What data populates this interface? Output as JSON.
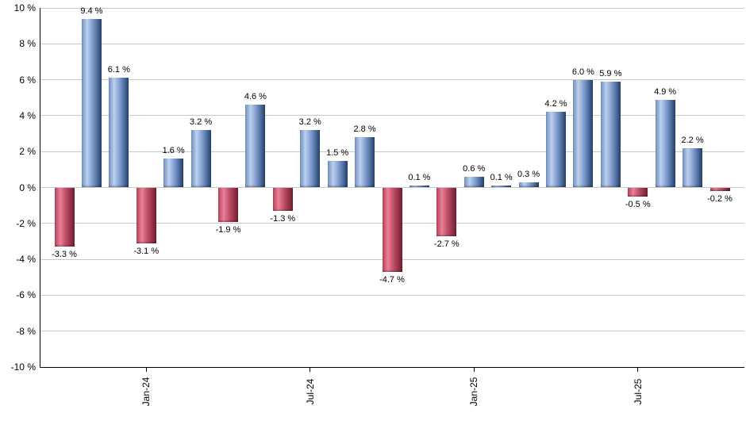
{
  "chart_data": {
    "type": "bar",
    "title": "",
    "xlabel": "",
    "ylabel": "",
    "ylim": [
      -10,
      10
    ],
    "grid": true,
    "legend": null,
    "values": [
      -3.3,
      9.4,
      6.1,
      -3.1,
      1.6,
      3.2,
      -1.9,
      4.6,
      -1.3,
      3.2,
      1.5,
      2.8,
      -4.7,
      0.1,
      -2.7,
      0.6,
      0.1,
      0.3,
      4.2,
      6.0,
      5.9,
      -0.5,
      4.9,
      2.2,
      -0.2
    ],
    "bar_labels": [
      "-3.3 %",
      "9.4 %",
      "6.1 %",
      "-3.1 %",
      "1.6 %",
      "3.2 %",
      "-1.9 %",
      "4.6 %",
      "-1.3 %",
      "3.2 %",
      "1.5 %",
      "2.8 %",
      "-4.7 %",
      "0.1 %",
      "-2.7 %",
      "0.6 %",
      "0.1 %",
      "0.3 %",
      "4.2 %",
      "6.0 %",
      "5.9 %",
      "-0.5 %",
      "4.9 %",
      "2.2 %",
      "-0.2 %"
    ],
    "yticks": [
      {
        "value": 10,
        "label": "10 %"
      },
      {
        "value": 8,
        "label": "8 %"
      },
      {
        "value": 6,
        "label": "6 %"
      },
      {
        "value": 4,
        "label": "4 %"
      },
      {
        "value": 2,
        "label": "2 %"
      },
      {
        "value": 0,
        "label": "0 %"
      },
      {
        "value": -2,
        "label": "-2 %"
      },
      {
        "value": -4,
        "label": "-4 %"
      },
      {
        "value": -6,
        "label": "-6 %"
      },
      {
        "value": -8,
        "label": "-8 %"
      },
      {
        "value": -10,
        "label": "-10 %"
      }
    ],
    "xticks": [
      {
        "bar_index": 3,
        "label": "Jan-24"
      },
      {
        "bar_index": 9,
        "label": "Jul-24"
      },
      {
        "bar_index": 15,
        "label": "Jan-25"
      },
      {
        "bar_index": 21,
        "label": "Jul-25"
      }
    ],
    "colors": {
      "positive_bar": [
        "#6e8fc0",
        "#bdd0ec",
        "#7e9dcf",
        "#23406d"
      ],
      "negative_bar": [
        "#b24056",
        "#ec8099",
        "#c14f68",
        "#701b31"
      ],
      "gridline": "#c8c8c8",
      "axis": "#000000",
      "text": "#000000",
      "background": "#ffffff"
    }
  }
}
